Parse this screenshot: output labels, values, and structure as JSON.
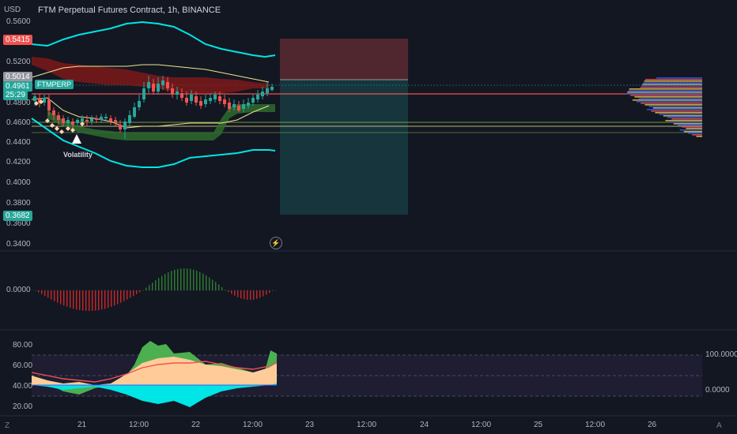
{
  "header": {
    "currency": "USD",
    "title": "FTM Perpetual Futures Contract, 1h, BINANCE"
  },
  "price_axis": {
    "ticks": [
      "0.5600",
      "0.5200",
      "0.4800",
      "0.4600",
      "0.4400",
      "0.4200",
      "0.4000",
      "0.3800",
      "0.3600",
      "0.3400"
    ]
  },
  "price_labels": {
    "stop": "0.5415",
    "prev": "0.5014",
    "last": "0.4961",
    "countdown": "25:29",
    "target": "0.3682",
    "symbol": "FTMPERP"
  },
  "oscillator": {
    "zero_label": "0.0000"
  },
  "rsi_panel": {
    "left_ticks": [
      "80.00",
      "60.00",
      "40.00",
      "20.00"
    ],
    "right_ticks": [
      "100.0000",
      "0.0000"
    ]
  },
  "time_axis": {
    "labels": [
      "21",
      "12:00",
      "22",
      "12:00",
      "23",
      "12:00",
      "24",
      "12:00",
      "25",
      "12:00",
      "26"
    ]
  },
  "annotations": {
    "volatility": "Volatility"
  },
  "corner": {
    "left": "Z",
    "right": "A"
  },
  "colors": {
    "bg": "#131722",
    "up": "#26a69a",
    "down": "#ef5350",
    "cyan": "#00e5e5",
    "stop_zone": "#ef5350",
    "target_zone": "#26a69a"
  }
}
